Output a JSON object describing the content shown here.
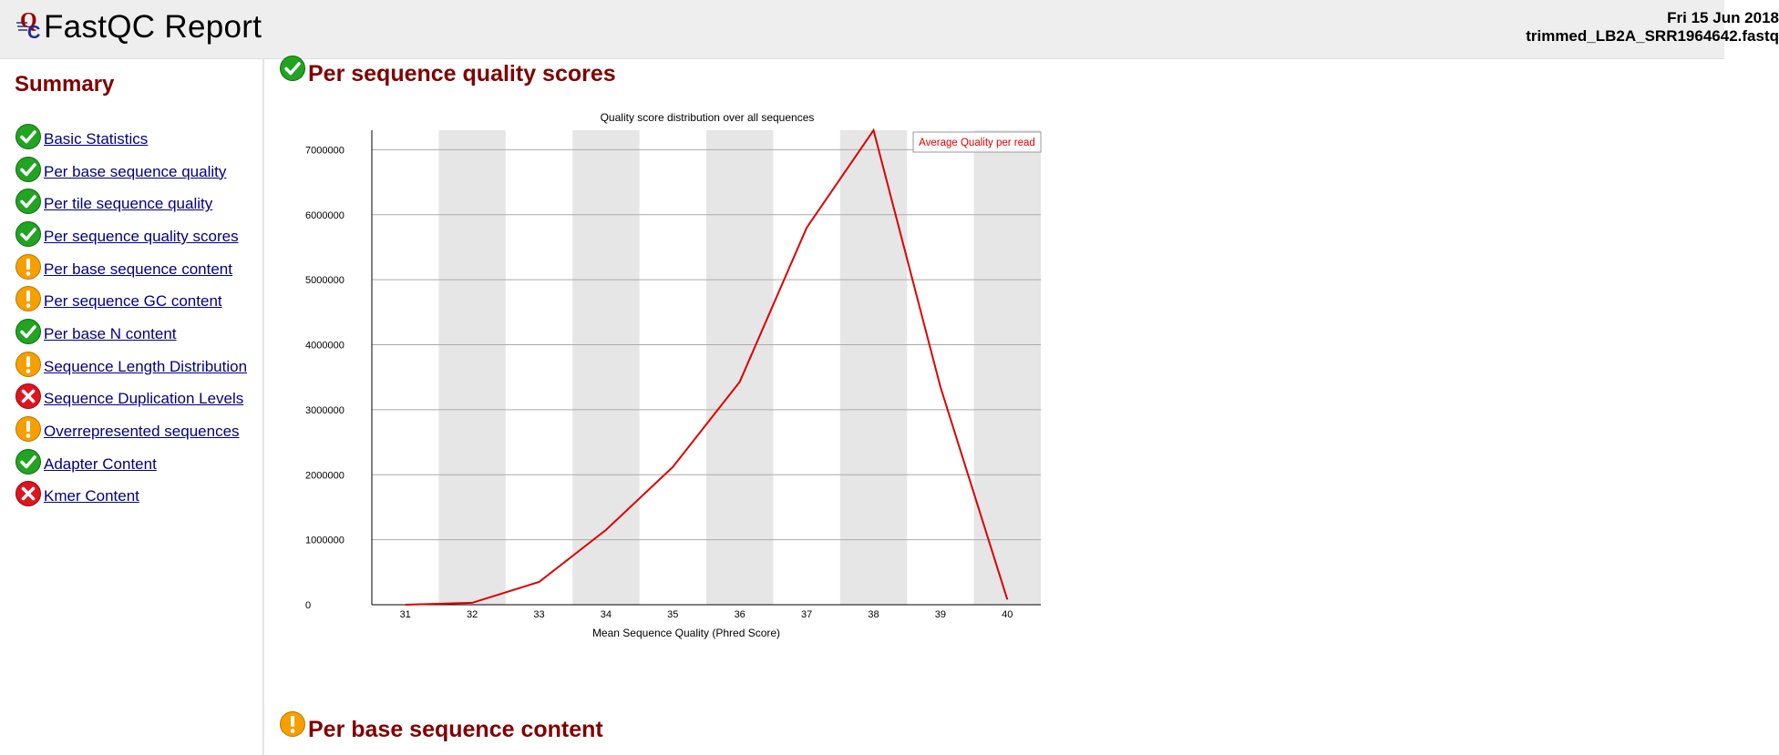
{
  "header": {
    "app_title": "FastQC Report",
    "date": "Fri 15 Jun 2018",
    "filename": "trimmed_LB2A_SRR1964642.fastq"
  },
  "sidebar": {
    "title": "Summary",
    "modules": [
      {
        "label": "Basic Statistics",
        "status": "pass"
      },
      {
        "label": "Per base sequence quality",
        "status": "pass"
      },
      {
        "label": "Per tile sequence quality",
        "status": "pass"
      },
      {
        "label": "Per sequence quality scores",
        "status": "pass"
      },
      {
        "label": "Per base sequence content",
        "status": "warn"
      },
      {
        "label": "Per sequence GC content",
        "status": "warn"
      },
      {
        "label": "Per base N content",
        "status": "pass"
      },
      {
        "label": "Sequence Length Distribution",
        "status": "warn"
      },
      {
        "label": "Sequence Duplication Levels",
        "status": "fail"
      },
      {
        "label": "Overrepresented sequences",
        "status": "warn"
      },
      {
        "label": "Adapter Content",
        "status": "pass"
      },
      {
        "label": "Kmer Content",
        "status": "fail"
      }
    ]
  },
  "main": {
    "sections": [
      {
        "title": "Per sequence quality scores",
        "status": "pass"
      },
      {
        "title": "Per base sequence content",
        "status": "warn"
      }
    ]
  },
  "colors": {
    "pass": "#22a322",
    "warn": "#f5a000",
    "fail": "#e0141e",
    "heading": "#800000",
    "link": "#000080",
    "series": "#dd0000"
  },
  "chart_data": {
    "type": "line",
    "title": "Quality score distribution over all sequences",
    "xlabel": "Mean Sequence Quality (Phred Score)",
    "ylabel": "",
    "x": [
      31,
      32,
      33,
      34,
      35,
      36,
      37,
      38,
      39,
      40
    ],
    "series": [
      {
        "name": "Average Quality per read",
        "values": [
          0,
          30000,
          350000,
          1150000,
          2120000,
          3430000,
          5800000,
          7300000,
          3350000,
          80000
        ]
      }
    ],
    "yticks": [
      0,
      1000000,
      2000000,
      3000000,
      4000000,
      5000000,
      6000000,
      7000000
    ],
    "ylim": [
      0,
      7300000
    ],
    "grid": true,
    "legend_position": "top-right",
    "shaded_bands": "alternating"
  }
}
